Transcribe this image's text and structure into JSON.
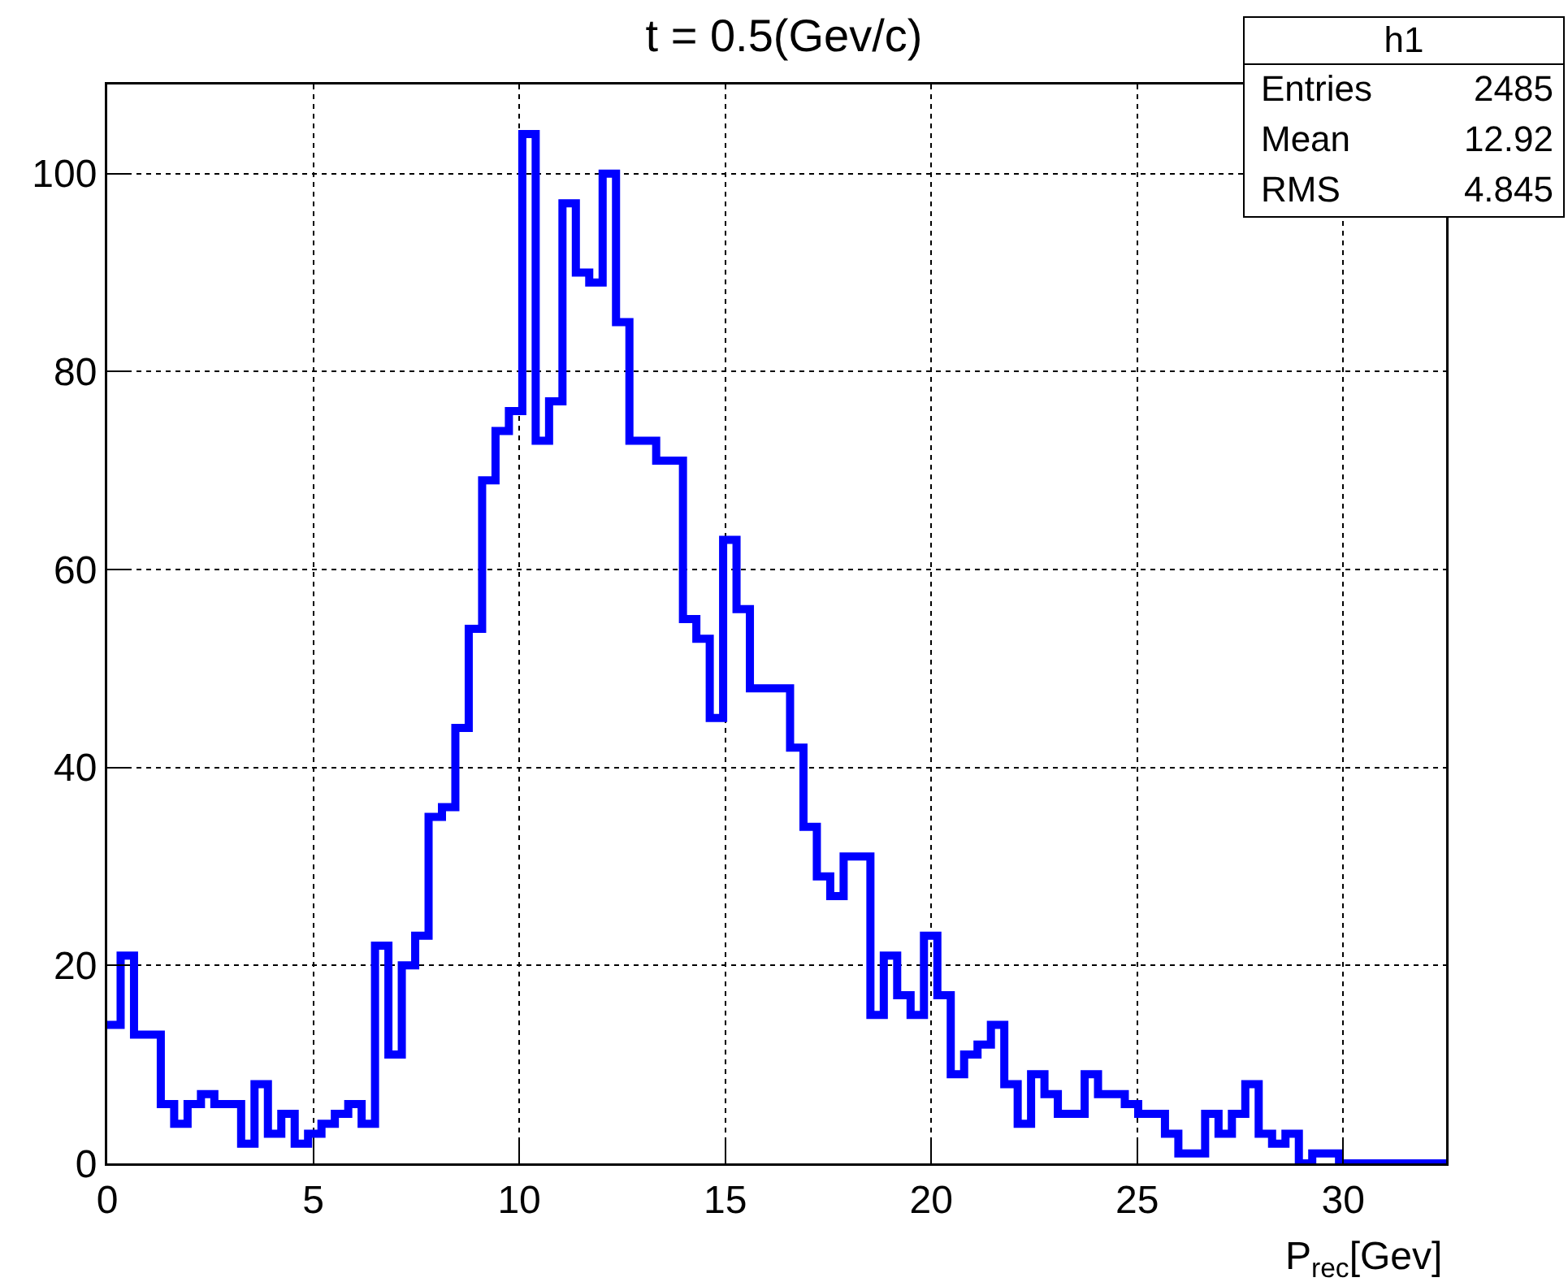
{
  "chart_data": {
    "type": "histogram",
    "title": "t = 0.5(Gev/c)",
    "xlabel": "P$_{rec}$[Gev]",
    "bins": [
      0,
      0.325,
      0.65,
      0.975,
      1.3,
      1.625,
      1.95,
      2.275,
      2.6,
      2.925,
      3.25,
      3.575,
      3.9,
      4.225,
      4.55,
      4.875,
      5.2,
      5.525,
      5.85,
      6.175,
      6.5,
      6.825,
      7.15,
      7.475,
      7.8,
      8.125,
      8.45,
      8.775,
      9.1,
      9.425,
      9.75,
      10.075,
      10.4,
      10.725,
      11.05,
      11.375,
      11.7,
      12.025,
      12.35,
      12.675,
      13,
      13.325,
      13.65,
      13.975,
      14.3,
      14.625,
      14.95,
      15.275,
      15.6,
      15.925,
      16.25,
      16.575,
      16.9,
      17.225,
      17.55,
      17.875,
      18.2,
      18.525,
      18.85,
      19.175,
      19.5,
      19.825,
      20.15,
      20.475,
      20.8,
      21.125,
      21.45,
      21.775,
      22.1,
      22.425,
      22.75,
      23.075,
      23.4,
      23.725,
      24.05,
      24.375,
      24.7,
      25.025,
      25.35,
      25.675,
      26,
      26.325,
      26.65,
      26.975,
      27.3,
      27.625,
      27.95,
      28.275,
      28.6,
      28.925,
      29.25,
      29.575,
      29.9,
      30.225,
      30.55,
      30.875,
      31.2,
      31.525,
      31.85,
      32.175,
      32.5
    ],
    "values": [
      14,
      21,
      13,
      13,
      6,
      4,
      6,
      7,
      6,
      6,
      2,
      8,
      3,
      5,
      2,
      3,
      4,
      5,
      6,
      4,
      22,
      11,
      20,
      23,
      35,
      36,
      44,
      54,
      69,
      74,
      76,
      104,
      73,
      77,
      97,
      90,
      89,
      100,
      85,
      73,
      73,
      71,
      71,
      55,
      53,
      45,
      63,
      56,
      48,
      48,
      48,
      42,
      34,
      29,
      27,
      31,
      31,
      15,
      21,
      17,
      15,
      23,
      17,
      9,
      11,
      12,
      14,
      8,
      4,
      9,
      7,
      5,
      5,
      9,
      7,
      7,
      6,
      5,
      5,
      3,
      1,
      1,
      5,
      3,
      5,
      8,
      3,
      2,
      3,
      0,
      1,
      1,
      0,
      0,
      0,
      0,
      0,
      0,
      0,
      0
    ],
    "color": "#0000ff",
    "xlim": [
      0,
      32.5
    ],
    "ylim": [
      0,
      109
    ],
    "xticks": [
      0,
      5,
      10,
      15,
      20,
      25,
      30
    ],
    "yticks": [
      0,
      20,
      40,
      60,
      80,
      100
    ],
    "grid": true,
    "annotations": [
      "h1",
      "Entries 2485",
      "Mean 12.92",
      "RMS 4.845"
    ]
  }
}
